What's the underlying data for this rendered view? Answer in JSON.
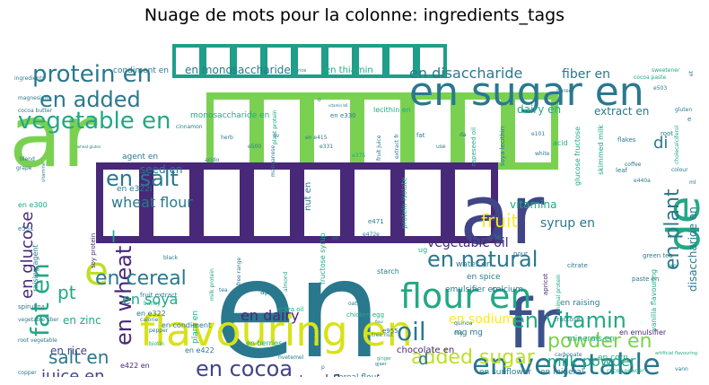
{
  "chart_data": {
    "type": "wordcloud",
    "title": "Nuage de mots pour la colonne: ingredients_tags",
    "background": "#ffffff",
    "colormap": "viridis",
    "words": [
      {
        "text": "en",
        "weight": 100,
        "color": "#2a788e"
      },
      {
        "text": "ar",
        "weight": 88,
        "color": "#7ad151"
      },
      {
        "text": "ar",
        "weight": 86,
        "color": "#414487"
      },
      {
        "text": "fr",
        "weight": 72,
        "color": "#3b528b"
      },
      {
        "text": "flavouring en",
        "weight": 48,
        "color": "#d8e219"
      },
      {
        "text": "en sugar en",
        "weight": 44,
        "color": "#2a788e"
      },
      {
        "text": "de",
        "weight": 42,
        "color": "#22a884"
      },
      {
        "text": "e",
        "weight": 40,
        "color": "#bddf26"
      },
      {
        "text": "flour en",
        "weight": 38,
        "color": "#22a884"
      },
      {
        "text": "en vegetable",
        "weight": 32,
        "color": "#2a788e"
      },
      {
        "text": "vegetable en",
        "weight": 30,
        "color": "#22a884"
      },
      {
        "text": "protein en",
        "weight": 28,
        "color": "#2a788e"
      },
      {
        "text": "en added",
        "weight": 26,
        "color": "#2a788e"
      },
      {
        "text": "fat en",
        "weight": 30,
        "color": "#22a884"
      },
      {
        "text": "oil",
        "weight": 30,
        "color": "#2a788e"
      },
      {
        "text": "en cocoa",
        "weight": 24,
        "color": "#414487"
      },
      {
        "text": "en wheat",
        "weight": 24,
        "color": "#482878"
      },
      {
        "text": "en salt",
        "weight": 24,
        "color": "#2a788e"
      },
      {
        "text": "en natural",
        "weight": 24,
        "color": "#2a788e"
      },
      {
        "text": "en vitamin",
        "weight": 24,
        "color": "#22a884"
      },
      {
        "text": "en cereal",
        "weight": 22,
        "color": "#2a788e"
      },
      {
        "text": "en plant",
        "weight": 22,
        "color": "#2a788e"
      },
      {
        "text": "added sugar",
        "weight": 22,
        "color": "#bddf26"
      },
      {
        "text": "powder en",
        "weight": 22,
        "color": "#7ad151"
      },
      {
        "text": "salt en",
        "weight": 20,
        "color": "#2a788e"
      },
      {
        "text": "juice en",
        "weight": 18,
        "color": "#414487"
      },
      {
        "text": "en glucose",
        "weight": 18,
        "color": "#482878"
      },
      {
        "text": "fruit",
        "weight": 20,
        "color": "#fde725"
      },
      {
        "text": "pt",
        "weight": 20,
        "color": "#22a884"
      },
      {
        "text": "en disaccharide",
        "weight": 16,
        "color": "#2a788e"
      },
      {
        "text": "fiber en",
        "weight": 14,
        "color": "#2a788e"
      },
      {
        "text": "wheat flour",
        "weight": 16,
        "color": "#2a788e"
      },
      {
        "text": "en soya",
        "weight": 16,
        "color": "#22a884"
      },
      {
        "text": "en dairy",
        "weight": 16,
        "color": "#482878"
      },
      {
        "text": "milk powder",
        "weight": 16,
        "color": "#22a884"
      },
      {
        "text": "en sodium",
        "weight": 14,
        "color": "#fde725"
      },
      {
        "text": "vegetable oil",
        "weight": 14,
        "color": "#482878"
      },
      {
        "text": "natural flavouring",
        "weight": 14,
        "color": "#482878"
      },
      {
        "text": "syrup en",
        "weight": 14,
        "color": "#2a788e"
      },
      {
        "text": "vitamina",
        "weight": 12,
        "color": "#22a884"
      },
      {
        "text": "disaccharide en",
        "weight": 12,
        "color": "#2a788e"
      },
      {
        "text": "dairy en",
        "weight": 12,
        "color": "#22a884"
      },
      {
        "text": "extract en",
        "weight": 12,
        "color": "#2a788e"
      },
      {
        "text": "di",
        "weight": 18,
        "color": "#2a788e"
      },
      {
        "text": "d",
        "weight": 18,
        "color": "#2a788e"
      },
      {
        "text": "l",
        "weight": 18,
        "color": "#22a884"
      },
      {
        "text": "en rice",
        "weight": 12,
        "color": "#414487"
      },
      {
        "text": "en zinc",
        "weight": 12,
        "color": "#22a884"
      },
      {
        "text": "seed en",
        "weight": 12,
        "color": "#2a788e"
      },
      {
        "text": "en monosaccharide",
        "weight": 12,
        "color": "#2a788e"
      },
      {
        "text": "en thiamin",
        "weight": 10,
        "color": "#22a884"
      },
      {
        "text": "condiment en",
        "weight": 9,
        "color": "#2a788e"
      },
      {
        "text": "monosaccharide en",
        "weight": 9,
        "color": "#22a884"
      },
      {
        "text": "en e322i",
        "weight": 9,
        "color": "#2a788e"
      },
      {
        "text": "agent en",
        "weight": 9,
        "color": "#2a788e"
      },
      {
        "text": "nut en",
        "weight": 10,
        "color": "#2a788e"
      },
      {
        "text": "chocolate en",
        "weight": 10,
        "color": "#482878"
      },
      {
        "text": "emulsifier en",
        "weight": 9,
        "color": "#2a788e"
      },
      {
        "text": "en raising",
        "weight": 9,
        "color": "#2a788e"
      },
      {
        "text": "minerals en",
        "weight": 9,
        "color": "#22a884"
      },
      {
        "text": "en mineral",
        "weight": 9,
        "color": "#2a788e"
      },
      {
        "text": "en sunflower",
        "weight": 9,
        "color": "#2a788e"
      },
      {
        "text": "cereal flour",
        "weight": 9,
        "color": "#2a788e"
      },
      {
        "text": "en corn",
        "weight": 9,
        "color": "#22a884"
      },
      {
        "text": "en stabiliser",
        "weight": 8,
        "color": "#2a788e"
      },
      {
        "text": "en emulsifier",
        "weight": 8,
        "color": "#482878"
      },
      {
        "text": "water en",
        "weight": 9,
        "color": "#2a788e"
      },
      {
        "text": "en spice",
        "weight": 9,
        "color": "#2a788e"
      },
      {
        "text": "calcium",
        "weight": 9,
        "color": "#2a788e"
      },
      {
        "text": "mg mg",
        "weight": 9,
        "color": "#2a788e"
      },
      {
        "text": "en berries",
        "weight": 8,
        "color": "#22a884"
      },
      {
        "text": "plant en",
        "weight": 9,
        "color": "#22a884"
      },
      {
        "text": "en condiment",
        "weight": 8,
        "color": "#2a788e"
      },
      {
        "text": "en e322",
        "weight": 8,
        "color": "#2a788e"
      },
      {
        "text": "en e422",
        "weight": 8,
        "color": "#2a788e"
      },
      {
        "text": "e422 en",
        "weight": 8,
        "color": "#482878"
      },
      {
        "text": "e330 en",
        "weight": 8,
        "color": "#2a788e"
      },
      {
        "text": "en e300",
        "weight": 8,
        "color": "#22a884"
      },
      {
        "text": "e551",
        "weight": 7,
        "color": "#2a788e"
      },
      {
        "text": "raising agent",
        "weight": 8,
        "color": "#2a788e"
      },
      {
        "text": "soy protein",
        "weight": 7,
        "color": "#482878"
      },
      {
        "text": "spirulina",
        "weight": 7,
        "color": "#2a788e"
      },
      {
        "text": "fruit extract",
        "weight": 7,
        "color": "#2a788e"
      },
      {
        "text": "vegetable fiber",
        "weight": 6,
        "color": "#2a788e"
      },
      {
        "text": "root vegetable",
        "weight": 6,
        "color": "#2a788e"
      },
      {
        "text": "copper",
        "weight": 6,
        "color": "#2a788e"
      },
      {
        "text": "folate",
        "weight": 6,
        "color": "#2a788e"
      },
      {
        "text": "maltodextrin",
        "weight": 6,
        "color": "#2a788e"
      },
      {
        "text": "barley",
        "weight": 6,
        "color": "#22a884"
      },
      {
        "text": "calorie",
        "weight": 6,
        "color": "#2a788e"
      },
      {
        "text": "pepper",
        "weight": 6,
        "color": "#2a788e"
      },
      {
        "text": "biotin",
        "weight": 6,
        "color": "#22a884"
      },
      {
        "text": "product",
        "weight": 6,
        "color": "#2a788e"
      },
      {
        "text": "whole",
        "weight": 6,
        "color": "#2a788e"
      },
      {
        "text": "stabiliser en",
        "weight": 6,
        "color": "#2a788e"
      },
      {
        "text": "apple",
        "weight": 8,
        "color": "#2a788e"
      },
      {
        "text": "colza oil",
        "weight": 7,
        "color": "#22a884"
      },
      {
        "text": "almond",
        "weight": 6,
        "color": "#22a884"
      },
      {
        "text": "date",
        "weight": 6,
        "color": "#2a788e"
      },
      {
        "text": "iron",
        "weight": 7,
        "color": "#2a788e"
      },
      {
        "text": "chicken egg",
        "weight": 7,
        "color": "#22a884"
      },
      {
        "text": "e955",
        "weight": 7,
        "color": "#2a788e"
      },
      {
        "text": "ferment",
        "weight": 6,
        "color": "#22a884"
      },
      {
        "text": "poudre",
        "weight": 6,
        "color": "#2a788e"
      },
      {
        "text": "turmeric",
        "weight": 6,
        "color": "#2a788e"
      },
      {
        "text": "fructose",
        "weight": 7,
        "color": "#2a788e"
      },
      {
        "text": "carbonate",
        "weight": 6,
        "color": "#2a788e"
      },
      {
        "text": "cocoa powder",
        "weight": 6,
        "color": "#22a884"
      },
      {
        "text": "caffeine",
        "weight": 6,
        "color": "#22a884"
      },
      {
        "text": "extrait de vitamin b12",
        "weight": 6,
        "color": "#2a788e"
      },
      {
        "text": "vanilla flavouring",
        "weight": 8,
        "color": "#22a884"
      },
      {
        "text": "green tea",
        "weight": 7,
        "color": "#2a788e"
      },
      {
        "text": "pro",
        "weight": 6,
        "color": "#2a788e"
      },
      {
        "text": "paste en",
        "weight": 7,
        "color": "#2a788e"
      },
      {
        "text": "vann",
        "weight": 6,
        "color": "#2a788e"
      },
      {
        "text": "artificial flavouring",
        "weight": 5,
        "color": "#22a884"
      },
      {
        "text": "citrate",
        "weight": 7,
        "color": "#2a788e"
      },
      {
        "text": "animal protein",
        "weight": 6,
        "color": "#22a884"
      },
      {
        "text": "apricot",
        "weight": 7,
        "color": "#482878"
      },
      {
        "text": "le",
        "weight": 8,
        "color": "#2a788e"
      },
      {
        "text": "pour",
        "weight": 7,
        "color": "#2a788e"
      },
      {
        "text": "e472e",
        "weight": 6,
        "color": "#2a788e"
      },
      {
        "text": "e471",
        "weight": 7,
        "color": "#2a788e"
      },
      {
        "text": "ug",
        "weight": 8,
        "color": "#22a884"
      },
      {
        "text": "starch",
        "weight": 8,
        "color": "#2a788e"
      },
      {
        "text": "protein isolate",
        "weight": 8,
        "color": "#22a884"
      },
      {
        "text": "fructose syrup",
        "weight": 8,
        "color": "#22a884"
      },
      {
        "text": "milk protein",
        "weight": 6,
        "color": "#22a884"
      },
      {
        "text": "free range",
        "weight": 6,
        "color": "#2a788e"
      },
      {
        "text": "black",
        "weight": 6,
        "color": "#2a788e"
      },
      {
        "text": "tea",
        "weight": 6,
        "color": "#2a788e"
      },
      {
        "text": "hvetemel",
        "weight": 6,
        "color": "#2a788e"
      },
      {
        "text": "oat",
        "weight": 6,
        "color": "#2a788e"
      },
      {
        "text": "tree nut",
        "weight": 6,
        "color": "#2a788e"
      },
      {
        "text": "ginger",
        "weight": 5,
        "color": "#22a884"
      },
      {
        "text": "gjaer",
        "weight": 5,
        "color": "#2a788e"
      },
      {
        "text": "e202",
        "weight": 6,
        "color": "#2a788e"
      },
      {
        "text": "ingredients",
        "weight": 6,
        "color": "#2a788e"
      },
      {
        "text": "magnesium",
        "weight": 6,
        "color": "#2a788e"
      },
      {
        "text": "cocoa butter",
        "weight": 6,
        "color": "#2a788e"
      },
      {
        "text": "cinnamon",
        "weight": 6,
        "color": "#2a788e"
      },
      {
        "text": "grape",
        "weight": 6,
        "color": "#2a788e"
      },
      {
        "text": "blend",
        "weight": 6,
        "color": "#2a788e"
      },
      {
        "text": "vitamine",
        "weight": 5,
        "color": "#2a788e"
      },
      {
        "text": "herb",
        "weight": 6,
        "color": "#2a788e"
      },
      {
        "text": "manganese",
        "weight": 6,
        "color": "#2a788e"
      },
      {
        "text": "plant protein",
        "weight": 6,
        "color": "#22a884"
      },
      {
        "text": "e500",
        "weight": 6,
        "color": "#2a788e"
      },
      {
        "text": "acido",
        "weight": 6,
        "color": "#2a788e"
      },
      {
        "text": "dv",
        "weight": 6,
        "color": "#2a788e"
      },
      {
        "text": "en e415",
        "weight": 6,
        "color": "#2a788e"
      },
      {
        "text": "e331",
        "weight": 6,
        "color": "#2a788e"
      },
      {
        "text": "e375",
        "weight": 6,
        "color": "#22a884"
      },
      {
        "text": "fruit juice",
        "weight": 6,
        "color": "#2a788e"
      },
      {
        "text": "extract fr",
        "weight": 6,
        "color": "#2a788e"
      },
      {
        "text": "fat",
        "weight": 7,
        "color": "#2a788e"
      },
      {
        "text": "use",
        "weight": 6,
        "color": "#2a788e"
      },
      {
        "text": "rapeseed oil",
        "weight": 7,
        "color": "#22a884"
      },
      {
        "text": "soya lecithin",
        "weight": 7,
        "color": "#2a788e"
      },
      {
        "text": "lecithin en",
        "weight": 8,
        "color": "#22a884"
      },
      {
        "text": "en e330",
        "weight": 7,
        "color": "#2a788e"
      },
      {
        "text": "puree",
        "weight": 6,
        "color": "#2a788e"
      },
      {
        "text": "e101",
        "weight": 6,
        "color": "#2a788e"
      },
      {
        "text": "white",
        "weight": 6,
        "color": "#2a788e"
      },
      {
        "text": "acid",
        "weight": 8,
        "color": "#22a884"
      },
      {
        "text": "leaf",
        "weight": 7,
        "color": "#2a788e"
      },
      {
        "text": "glucose fructose",
        "weight": 8,
        "color": "#22a884"
      },
      {
        "text": "skimmed milk",
        "weight": 8,
        "color": "#22a884"
      },
      {
        "text": "flakes",
        "weight": 7,
        "color": "#2a788e"
      },
      {
        "text": "coffee",
        "weight": 6,
        "color": "#2a788e"
      },
      {
        "text": "e440a",
        "weight": 6,
        "color": "#2a788e"
      },
      {
        "text": "root",
        "weight": 7,
        "color": "#2a788e"
      },
      {
        "text": "colour",
        "weight": 6,
        "color": "#2a788e"
      },
      {
        "text": "cholecalciferol",
        "weight": 6,
        "color": "#22a884"
      },
      {
        "text": "sweetener",
        "weight": 6,
        "color": "#22a884"
      },
      {
        "text": "cocoa paste",
        "weight": 6,
        "color": "#22a884"
      },
      {
        "text": "e503",
        "weight": 6,
        "color": "#2a788e"
      },
      {
        "text": "gluten",
        "weight": 6,
        "color": "#2a788e"
      },
      {
        "text": "rice",
        "weight": 5,
        "color": "#2a788e"
      },
      {
        "text": "et",
        "weight": 6,
        "color": "#2a788e"
      },
      {
        "text": "e",
        "weight": 7,
        "color": "#2a788e"
      },
      {
        "text": "ml",
        "weight": 6,
        "color": "#2a788e"
      },
      {
        "text": "da",
        "weight": 6,
        "color": "#2a788e"
      },
      {
        "text": "quinoa",
        "weight": 6,
        "color": "#2a788e"
      },
      {
        "text": "mg",
        "weight": 6,
        "color": "#2a788e"
      },
      {
        "text": "o",
        "weight": 6,
        "color": "#2a788e"
      },
      {
        "text": "p",
        "weight": 6,
        "color": "#2a788e"
      },
      {
        "text": "wheat gluten",
        "weight": 4,
        "color": "#2a788e"
      },
      {
        "text": "vitamin b6",
        "weight": 4,
        "color": "#2a788e"
      },
      {
        "text": "un",
        "weight": 6,
        "color": "#2a788e"
      },
      {
        "text": "flour",
        "weight": 4,
        "color": "#2a788e"
      }
    ]
  }
}
